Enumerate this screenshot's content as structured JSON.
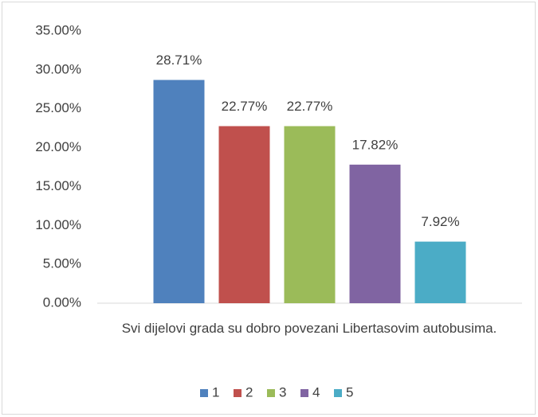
{
  "chart_data": {
    "type": "bar",
    "categories": [
      "Svi dijelovi grada su dobro povezani Libertasovim autobusima."
    ],
    "series": [
      {
        "name": "1",
        "color": "#4f81bd",
        "values": [
          28.71
        ],
        "value_labels": [
          "28.71%"
        ]
      },
      {
        "name": "2",
        "color": "#c0504d",
        "values": [
          22.77
        ],
        "value_labels": [
          "22.77%"
        ]
      },
      {
        "name": "3",
        "color": "#9bbb59",
        "values": [
          22.77
        ],
        "value_labels": [
          "22.77%"
        ]
      },
      {
        "name": "4",
        "color": "#8064a2",
        "values": [
          17.82
        ],
        "value_labels": [
          "17.82%"
        ]
      },
      {
        "name": "5",
        "color": "#4bacc6",
        "values": [
          7.92
        ],
        "value_labels": [
          "7.92%"
        ]
      }
    ],
    "ylim": [
      0,
      35
    ],
    "yticks": [
      {
        "value": 0,
        "label": "0.00%"
      },
      {
        "value": 5,
        "label": "5.00%"
      },
      {
        "value": 10,
        "label": "10.00%"
      },
      {
        "value": 15,
        "label": "15.00%"
      },
      {
        "value": 20,
        "label": "20.00%"
      },
      {
        "value": 25,
        "label": "25.00%"
      },
      {
        "value": 30,
        "label": "30.00%"
      },
      {
        "value": 35,
        "label": "35.00%"
      }
    ],
    "grid": false,
    "legend": "bottom"
  }
}
